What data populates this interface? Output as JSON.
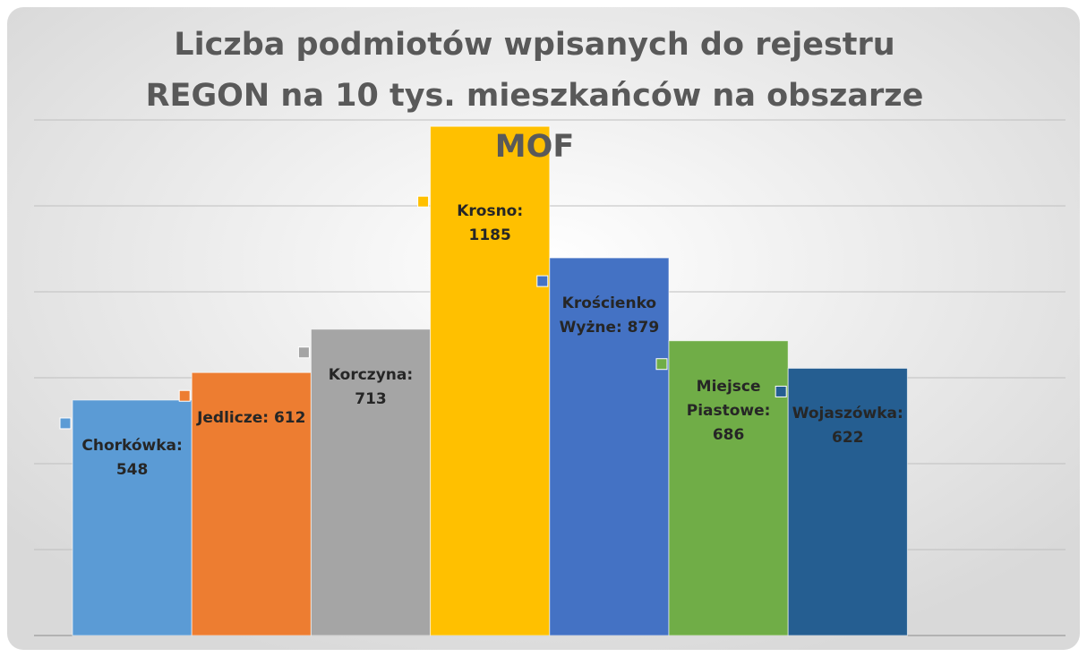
{
  "chart_data": {
    "type": "bar",
    "title": "Liczba podmiotów wpisanych do rejestru REGON na 10 tys. mieszkańców na obszarze MOF",
    "values": [
      548,
      612,
      713,
      1185,
      879,
      686,
      622
    ],
    "value_labels": [
      "Chorkówka: 548",
      "Jedlicze: 612",
      "Korczyna: 713",
      "Krosno: 1185",
      "Krościenko Wyżne: 879",
      "Miejsce Piastowe: 686",
      "Wojaszówka: 622"
    ],
    "colors": [
      "#5b9bd5",
      "#ed7d31",
      "#a5a5a5",
      "#ffc000",
      "#4472c4",
      "#70ad47",
      "#255e91"
    ],
    "ylim": [
      0,
      1200
    ],
    "yticks": [
      0,
      200,
      400,
      600,
      800,
      1000,
      1200
    ],
    "grid": true
  }
}
